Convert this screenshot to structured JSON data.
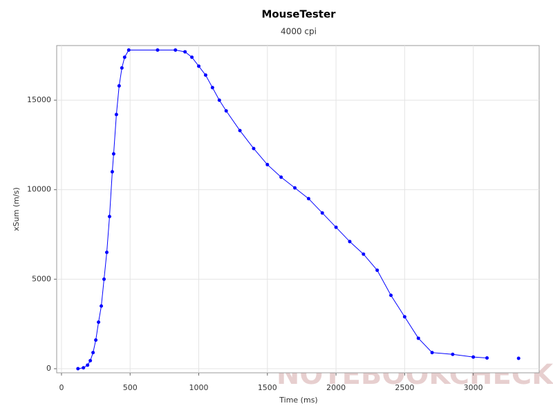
{
  "chart_data": {
    "type": "line",
    "title": "MouseTester",
    "subtitle": "4000 cpi",
    "x_label": "Time (ms)",
    "y_label": "xSum (m/s)",
    "watermark": "NOTEBOOKCHECK",
    "x": [
      120,
      160,
      190,
      210,
      230,
      250,
      270,
      290,
      310,
      330,
      350,
      370,
      380,
      400,
      420,
      440,
      460,
      490,
      700,
      830,
      900,
      950,
      1000,
      1050,
      1100,
      1150,
      1200,
      1300,
      1400,
      1500,
      1600,
      1700,
      1800,
      1900,
      2000,
      2100,
      2200,
      2300,
      2400,
      2500,
      2600,
      2700,
      2850,
      3000,
      3100,
      3200,
      3330
    ],
    "series": [
      {
        "name": "xSum",
        "color": "#0000ff",
        "values": [
          0,
          50,
          200,
          450,
          900,
          1600,
          2600,
          3500,
          5000,
          6500,
          8500,
          11000,
          12000,
          14200,
          15800,
          16800,
          17400,
          17800,
          17800,
          17800,
          17700,
          17400,
          16900,
          16400,
          15700,
          15000,
          14400,
          13300,
          12300,
          11400,
          10700,
          10100,
          9500,
          8700,
          7900,
          7100,
          6400,
          5500,
          4100,
          2900,
          1700,
          900,
          800,
          650,
          600,
          null,
          580
        ]
      }
    ],
    "xlim": [
      -35,
      3480
    ],
    "ylim": [
      -230,
      18050
    ],
    "xticks": [
      0,
      500,
      1000,
      1500,
      2000,
      2500,
      3000
    ],
    "yticks": [
      0,
      5000,
      10000,
      15000
    ],
    "grid": true
  }
}
